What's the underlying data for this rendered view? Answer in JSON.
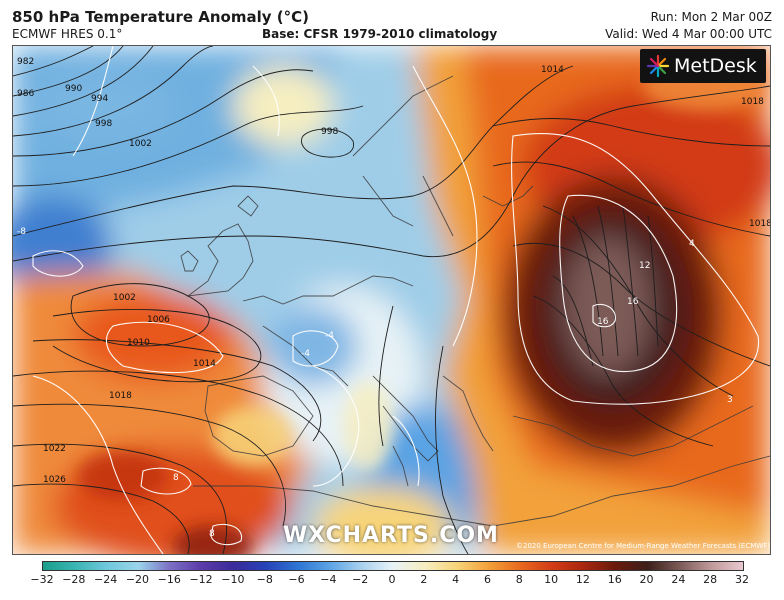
{
  "header": {
    "title": "850 hPa Temperature Anomaly (°C)",
    "model": "ECMWF HRES 0.1°",
    "base": "Base: CFSR 1979-2010 climatology",
    "run": "Run: Mon 2 Mar 00Z",
    "valid": "Valid: Wed 4 Mar 00:00 UTC"
  },
  "logo": {
    "text": "MetDesk",
    "icon": "metdesk-starburst-icon"
  },
  "watermark": "WXCHARTS.COM",
  "copyright": "©2020 European Centre for Medium-Range Weather Forecasts (ECMWF)",
  "isobar_labels": [
    "982",
    "986",
    "990",
    "994",
    "998",
    "1002",
    "998",
    "1014",
    "1018",
    "1018",
    "1002",
    "1006",
    "1010",
    "1014",
    "1018",
    "1022",
    "1026"
  ],
  "anomaly_labels": [
    "-8",
    "-4",
    "12",
    "16",
    "16",
    "8",
    "8",
    "4",
    "-4",
    "3"
  ],
  "colorbar": {
    "ticks": [
      "−32",
      "−28",
      "−24",
      "−20",
      "−16",
      "−12",
      "−10",
      "−8",
      "−6",
      "−4",
      "−2",
      "0",
      "2",
      "4",
      "6",
      "8",
      "10",
      "12",
      "16",
      "20",
      "24",
      "28",
      "32"
    ],
    "colors": [
      "#1a9e8a",
      "#39b5b3",
      "#6fc8dc",
      "#9ad4ea",
      "#7b6fc4",
      "#5a3aa8",
      "#3b2b9a",
      "#2642b8",
      "#2e74d3",
      "#5aa3e4",
      "#a9d0ee",
      "#e8f3f7",
      "#f6eec1",
      "#f7d47a",
      "#f2a13a",
      "#e8691e",
      "#d23b16",
      "#a8260e",
      "#6a1a0c",
      "#3d1f1a",
      "#7b5a56",
      "#c09a9a",
      "#e8c8d0"
    ]
  }
}
